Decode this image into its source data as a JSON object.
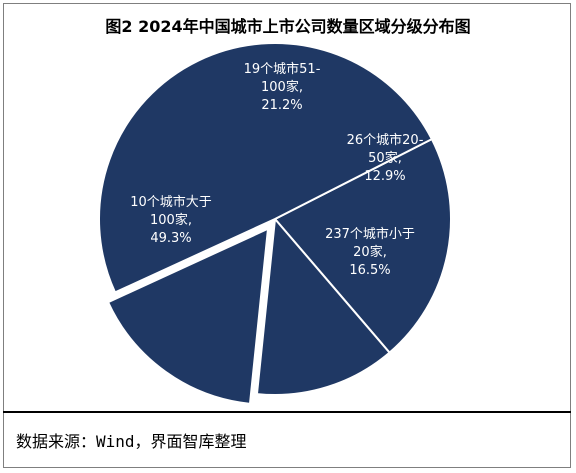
{
  "chart_data": {
    "type": "pie",
    "title": "图2 2024年中国城市上市公司数量区域分级分布图",
    "slices": [
      {
        "label_lines": [
          "19个城市51-",
          "100家,",
          "21.2%"
        ],
        "value": 21.2
      },
      {
        "label_lines": [
          "26个城市20-",
          "50家,",
          "12.9%"
        ],
        "value": 12.9
      },
      {
        "label_lines": [
          "237个城市小于",
          "20家,",
          "16.5%"
        ],
        "value": 16.5
      },
      {
        "label_lines": [
          "10个城市大于",
          "100家,",
          "49.3%"
        ],
        "value": 49.3
      }
    ],
    "exploded_slice": 2,
    "colors": {
      "slice": "#1f3864",
      "edge": "#ffffff"
    }
  },
  "source": "数据来源：Wind，界面智库整理"
}
